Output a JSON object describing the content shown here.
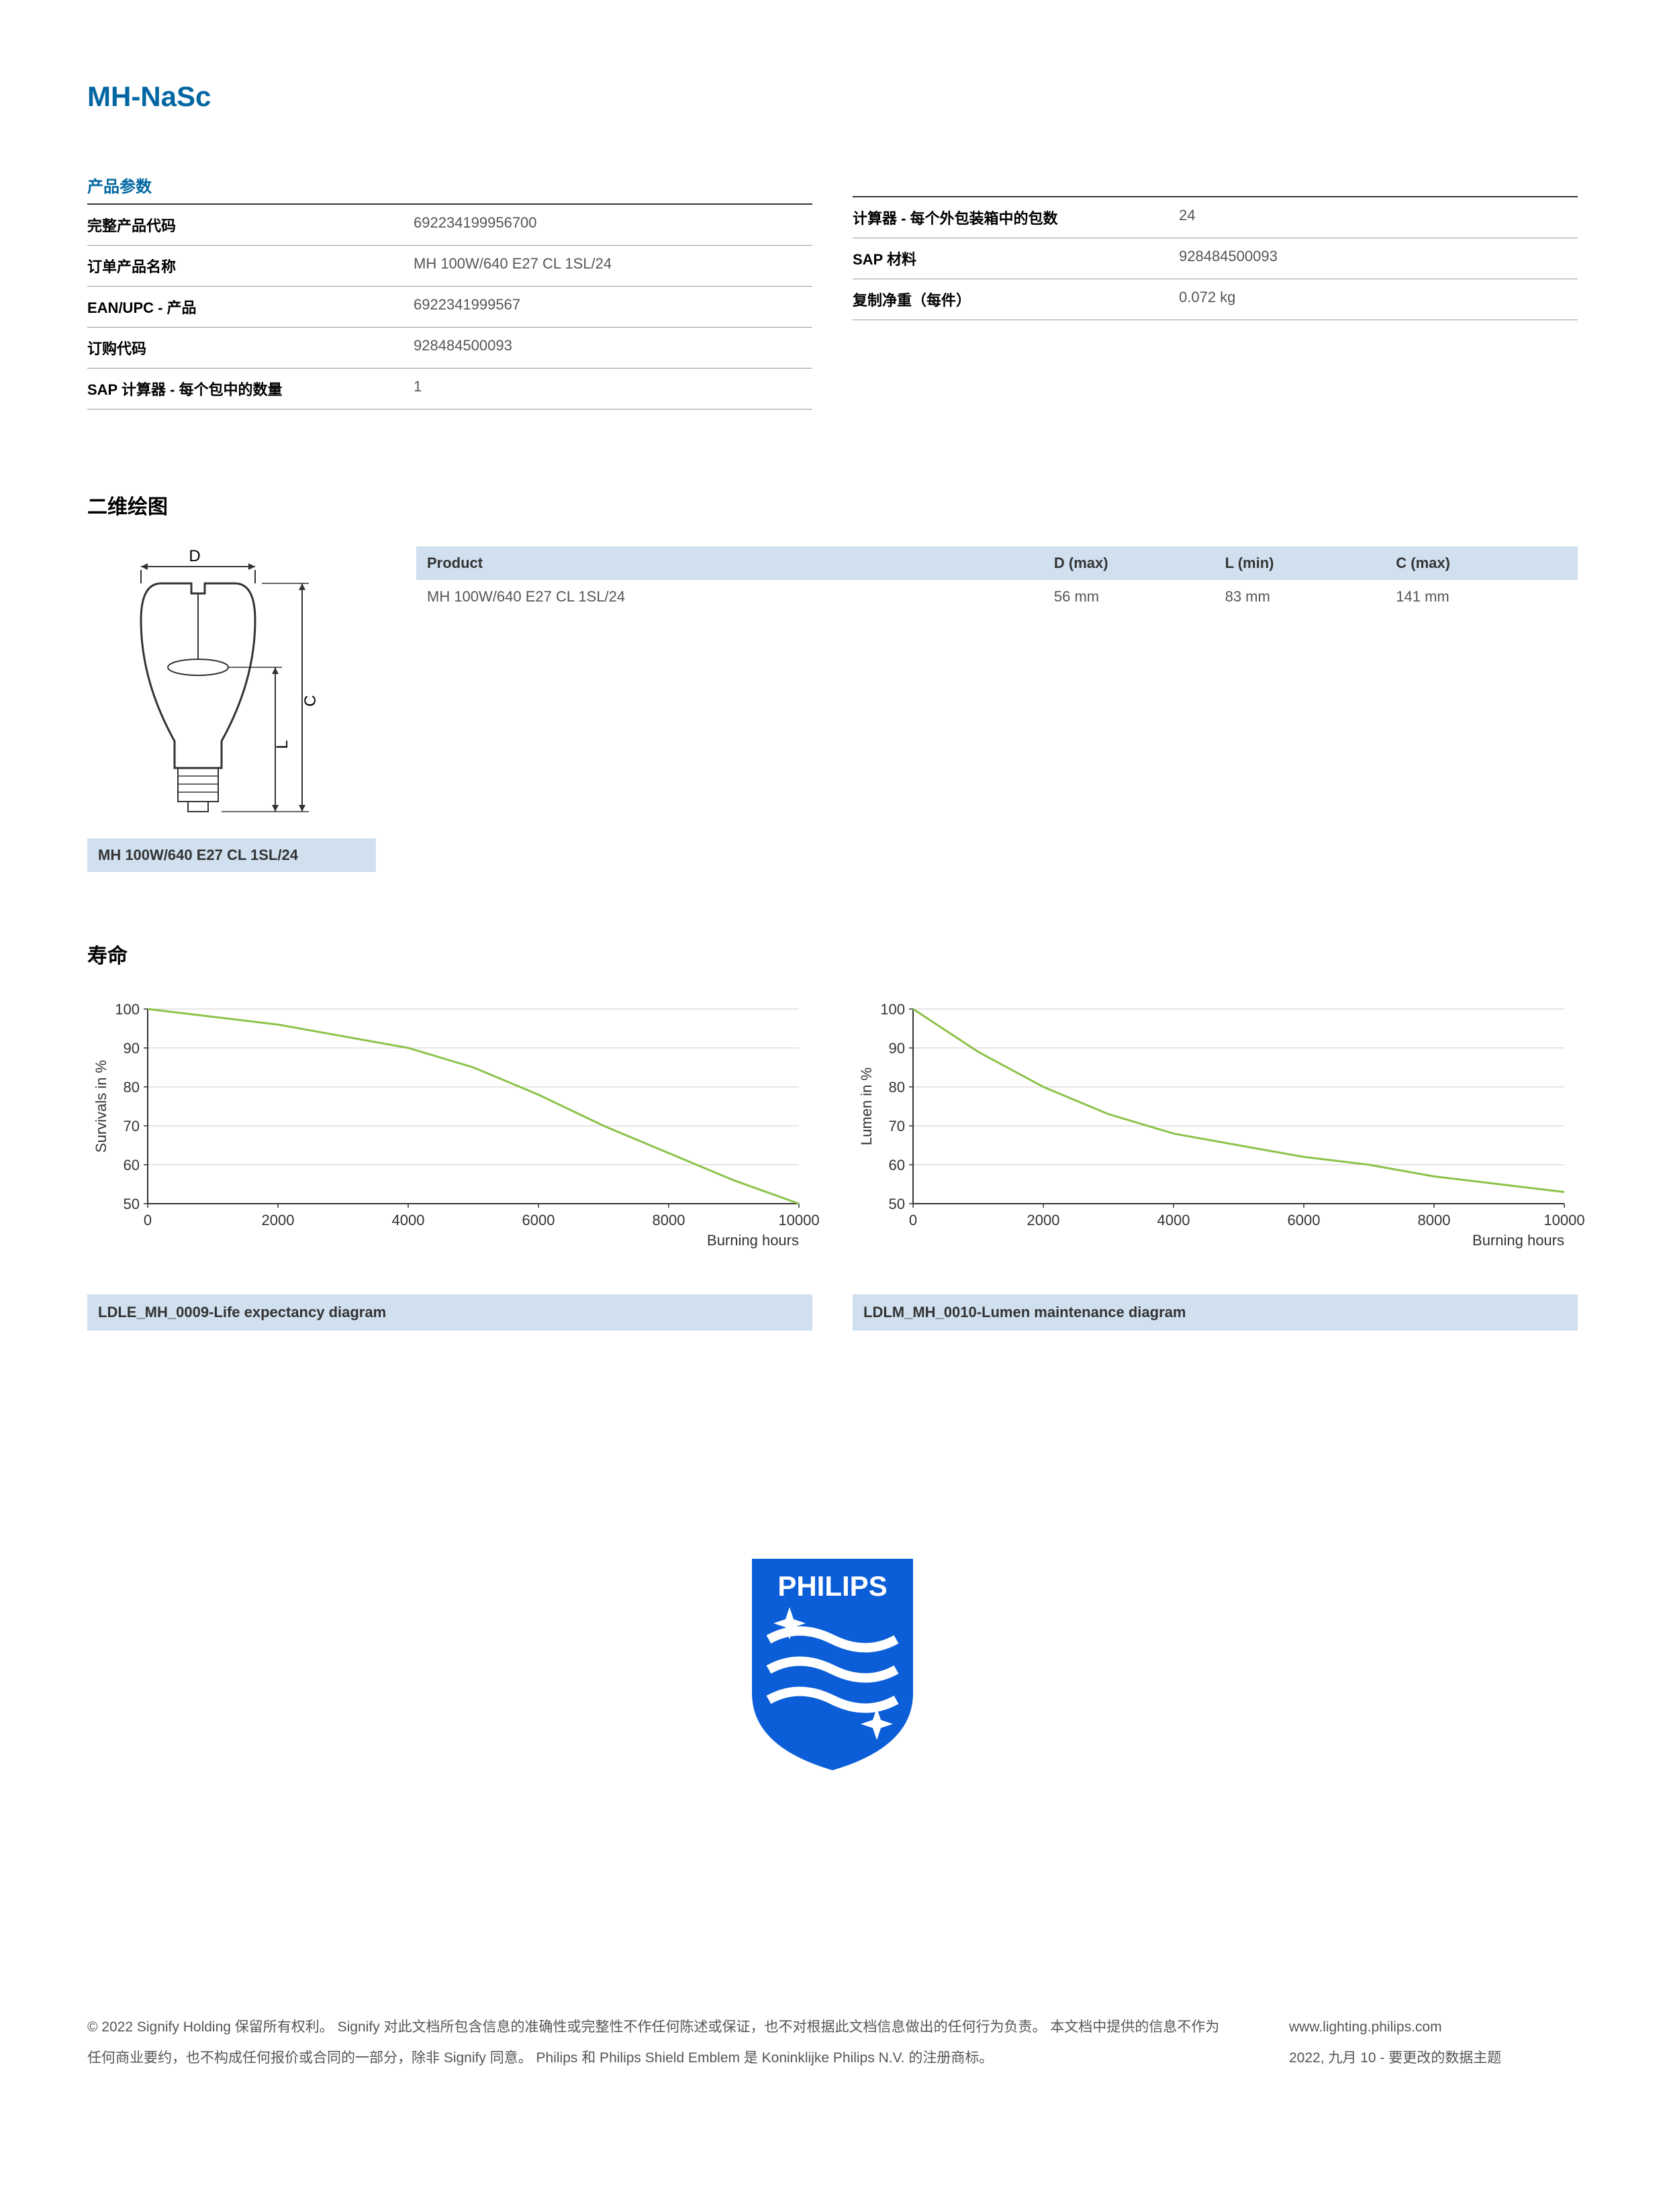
{
  "title": "MH-NaSc",
  "params_header": "产品参数",
  "params_left": [
    {
      "label": "完整产品代码",
      "value": "692234199956700"
    },
    {
      "label": "订单产品名称",
      "value": "MH 100W/640 E27 CL 1SL/24"
    },
    {
      "label": "EAN/UPC - 产品",
      "value": "6922341999567"
    },
    {
      "label": "订购代码",
      "value": "928484500093"
    },
    {
      "label": "SAP 计算器 - 每个包中的数量",
      "value": "1"
    }
  ],
  "params_right": [
    {
      "label": "计算器 - 每个外包装箱中的包数",
      "value": "24"
    },
    {
      "label": "SAP 材料",
      "value": "928484500093"
    },
    {
      "label": "复制净重（每件）",
      "value": "0.072 kg"
    }
  ],
  "drawing_section_title": "二维绘图",
  "drawing_caption": "MH 100W/640 E27 CL 1SL/24",
  "drawing_labels": {
    "D": "D",
    "L": "L",
    "C": "C"
  },
  "spec_table": {
    "headers": [
      "Product",
      "D (max)",
      "L (min)",
      "C (max)"
    ],
    "row": [
      "MH 100W/640 E27 CL 1SL/24",
      "56 mm",
      "83 mm",
      "141 mm"
    ]
  },
  "lifetime_title": "寿命",
  "chart1": {
    "type": "line",
    "ylabel": "Survivals in %",
    "xlabel": "Burning hours",
    "xlim": [
      0,
      10000
    ],
    "ylim": [
      50,
      100
    ],
    "xtick_step": 2000,
    "ytick_step": 10,
    "xticks": [
      0,
      2000,
      4000,
      6000,
      8000,
      10000
    ],
    "yticks": [
      50,
      60,
      70,
      80,
      90,
      100
    ],
    "line_color": "#8bc34a",
    "line_width": 3,
    "grid_color": "#cccccc",
    "axis_color": "#333333",
    "background_color": "#ffffff",
    "label_fontsize": 22,
    "tick_fontsize": 22,
    "data_x": [
      0,
      1000,
      2000,
      3000,
      4000,
      5000,
      6000,
      7000,
      8000,
      9000,
      10000
    ],
    "data_y": [
      100,
      98,
      96,
      93,
      90,
      85,
      78,
      70,
      63,
      56,
      50
    ]
  },
  "chart2": {
    "type": "line",
    "ylabel": "Lumen in %",
    "xlabel": "Burning hours",
    "xlim": [
      0,
      10000
    ],
    "ylim": [
      50,
      100
    ],
    "xtick_step": 2000,
    "ytick_step": 10,
    "xticks": [
      0,
      2000,
      4000,
      6000,
      8000,
      10000
    ],
    "yticks": [
      50,
      60,
      70,
      80,
      90,
      100
    ],
    "line_color": "#8bc34a",
    "line_width": 3,
    "grid_color": "#cccccc",
    "axis_color": "#333333",
    "background_color": "#ffffff",
    "label_fontsize": 22,
    "tick_fontsize": 22,
    "data_x": [
      0,
      1000,
      2000,
      3000,
      4000,
      5000,
      6000,
      7000,
      8000,
      9000,
      10000
    ],
    "data_y": [
      100,
      89,
      80,
      73,
      68,
      65,
      62,
      60,
      57,
      55,
      53
    ]
  },
  "chart1_caption": "LDLE_MH_0009-Life expectancy diagram",
  "chart2_caption": "LDLM_MH_0010-Lumen maintenance diagram",
  "logo_text": "PHILIPS",
  "logo_bg": "#0b5ed7",
  "logo_text_color": "#ffffff",
  "footer_left": "© 2022 Signify Holding 保留所有权利。 Signify 对此文档所包含信息的准确性或完整性不作任何陈述或保证，也不对根据此文档信息做出的任何行为负责。 本文档中提供的信息不作为任何商业要约，也不构成任何报价或合同的一部分，除非 Signify 同意。 Philips 和 Philips Shield Emblem 是 Koninklijke Philips N.V. 的注册商标。",
  "footer_right_1": "www.lighting.philips.com",
  "footer_right_2": "2022, 九月 10 - 要更改的数据主题"
}
